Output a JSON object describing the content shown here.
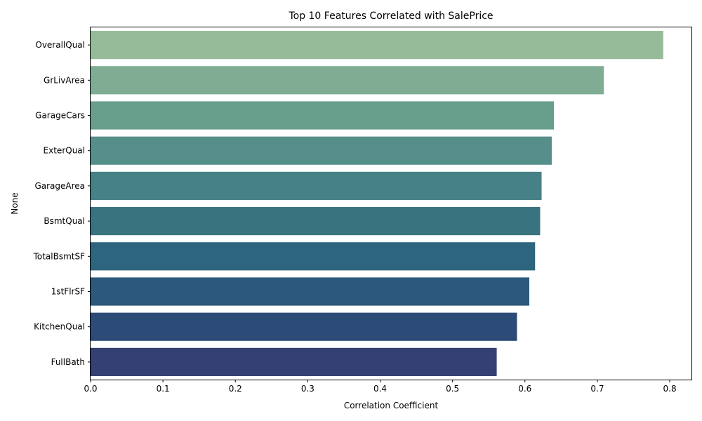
{
  "chart_data": {
    "type": "bar",
    "orientation": "horizontal",
    "title": "Top 10 Features Correlated with SalePrice",
    "xlabel": "Correlation Coefficient",
    "ylabel": "None",
    "categories": [
      "OverallQual",
      "GrLivArea",
      "GarageCars",
      "ExterQual",
      "GarageArea",
      "BsmtQual",
      "TotalBsmtSF",
      "1stFlrSF",
      "KitchenQual",
      "FullBath"
    ],
    "values": [
      0.791,
      0.709,
      0.64,
      0.637,
      0.623,
      0.621,
      0.614,
      0.606,
      0.589,
      0.561
    ],
    "colors": [
      "#95bb98",
      "#80ac94",
      "#689f8c",
      "#568f89",
      "#468186",
      "#3a7380",
      "#2e657e",
      "#2b587c",
      "#2d4b77",
      "#334071"
    ],
    "xlim": [
      0,
      0.83
    ],
    "xticks": [
      0.0,
      0.1,
      0.2,
      0.3,
      0.4,
      0.5,
      0.6,
      0.7,
      0.8
    ],
    "xtick_labels": [
      "0.0",
      "0.1",
      "0.2",
      "0.3",
      "0.4",
      "0.5",
      "0.6",
      "0.7",
      "0.8"
    ],
    "grid": false,
    "legend": "none"
  }
}
